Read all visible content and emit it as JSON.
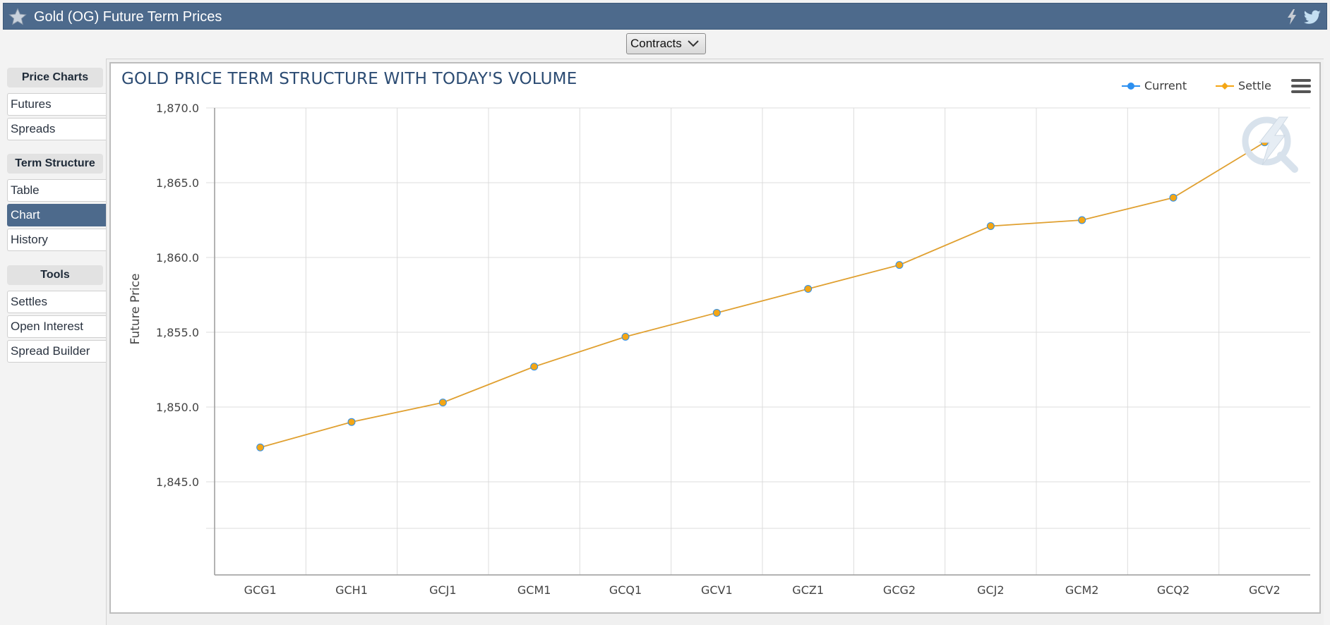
{
  "window": {
    "title": "Gold (OG) Future Term Prices"
  },
  "toolbar": {
    "contracts_label": "Contracts"
  },
  "sidebar": {
    "sections": [
      {
        "heading": "Price Charts",
        "items": [
          "Futures",
          "Spreads"
        ]
      },
      {
        "heading": "Term Structure",
        "items": [
          "Table",
          "Chart",
          "History"
        ]
      },
      {
        "heading": "Tools",
        "items": [
          "Settles",
          "Open Interest",
          "Spread Builder"
        ]
      }
    ],
    "active_item": "Chart"
  },
  "colors": {
    "header_bg": "#4d6a8c",
    "settle": "#f4a615",
    "current": "#2b8ff0",
    "line": "#e0a030"
  },
  "chart_data": {
    "type": "line",
    "title": "GOLD PRICE TERM STRUCTURE WITH TODAY'S VOLUME",
    "ylabel": "Future Price",
    "xlabel": "",
    "categories": [
      "GCG1",
      "GCH1",
      "GCJ1",
      "GCM1",
      "GCQ1",
      "GCV1",
      "GCZ1",
      "GCG2",
      "GCJ2",
      "GCM2",
      "GCQ2",
      "GCV2"
    ],
    "y_ticks": [
      1870.0,
      1865.0,
      1860.0,
      1855.0,
      1850.0,
      1845.0
    ],
    "y_tick_labels": [
      "1,870.0",
      "1,865.0",
      "1,860.0",
      "1,855.0",
      "1,850.0",
      "1,845.0"
    ],
    "ylim": [
      1840.0,
      1870.0
    ],
    "series": [
      {
        "name": "Current",
        "values": [
          1847.3,
          1849.0,
          1850.3,
          1852.7,
          1854.7,
          1856.3,
          1857.9,
          1859.5,
          1862.1,
          1862.5,
          1864.0,
          1867.7
        ]
      },
      {
        "name": "Settle",
        "values": [
          1847.3,
          1849.0,
          1850.3,
          1852.7,
          1854.7,
          1856.3,
          1857.9,
          1859.5,
          1862.1,
          1862.5,
          1864.0,
          1867.7
        ]
      }
    ],
    "legend_position": "top-right",
    "grid": true
  }
}
